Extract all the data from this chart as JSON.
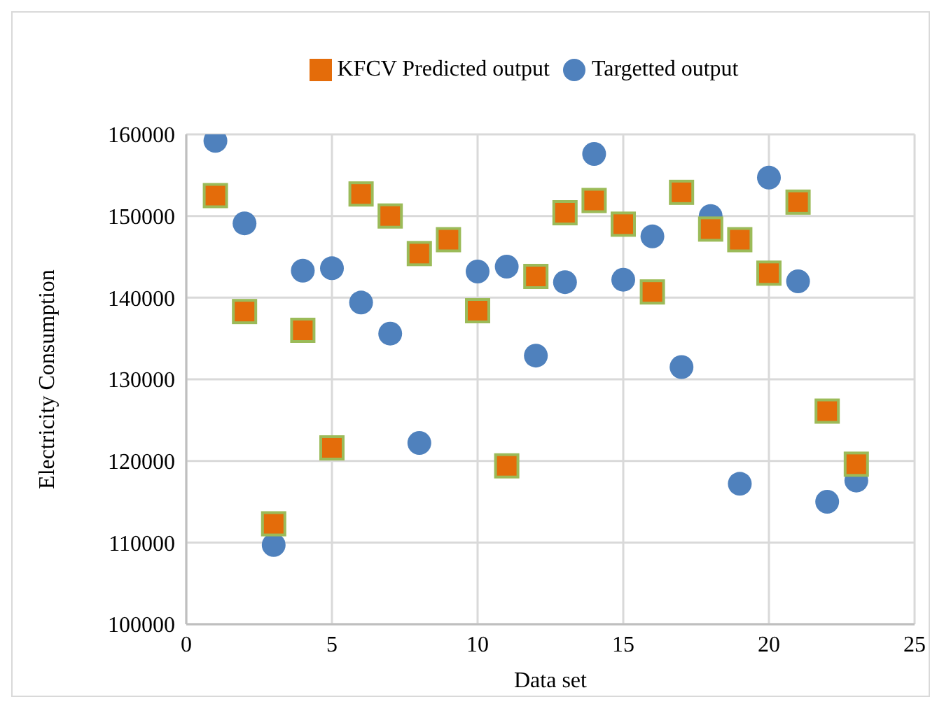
{
  "chart_data": {
    "type": "scatter",
    "xlabel": "Data set",
    "ylabel": "Electricity Consumption",
    "x": [
      1,
      2,
      3,
      4,
      5,
      6,
      7,
      8,
      9,
      10,
      11,
      12,
      13,
      14,
      15,
      16,
      17,
      18,
      19,
      20,
      21,
      22,
      23
    ],
    "series": [
      {
        "name": "Targetted output",
        "color": "#4f81bd",
        "marker": "circle",
        "values": [
          159200,
          149100,
          109700,
          143300,
          143600,
          139400,
          135600,
          122200,
          null,
          143200,
          143800,
          132900,
          141900,
          157600,
          142200,
          147500,
          131500,
          150000,
          117200,
          154700,
          142000,
          115000,
          117600
        ]
      },
      {
        "name": "KFCV Predicted output",
        "color": "#e46c0a",
        "marker": "square",
        "values": [
          152500,
          138300,
          112300,
          136000,
          121600,
          152700,
          150000,
          145400,
          147100,
          138400,
          119400,
          142600,
          150400,
          151900,
          149000,
          140700,
          152900,
          148400,
          147100,
          143000,
          151700,
          126100,
          119600
        ]
      }
    ],
    "xlim": [
      0,
      25
    ],
    "xticks": [
      0,
      5,
      10,
      15,
      20,
      25
    ],
    "ylim": [
      100000,
      160000
    ],
    "yticks": [
      100000,
      110000,
      120000,
      130000,
      140000,
      150000,
      160000
    ],
    "grid": true,
    "legend": "top"
  }
}
